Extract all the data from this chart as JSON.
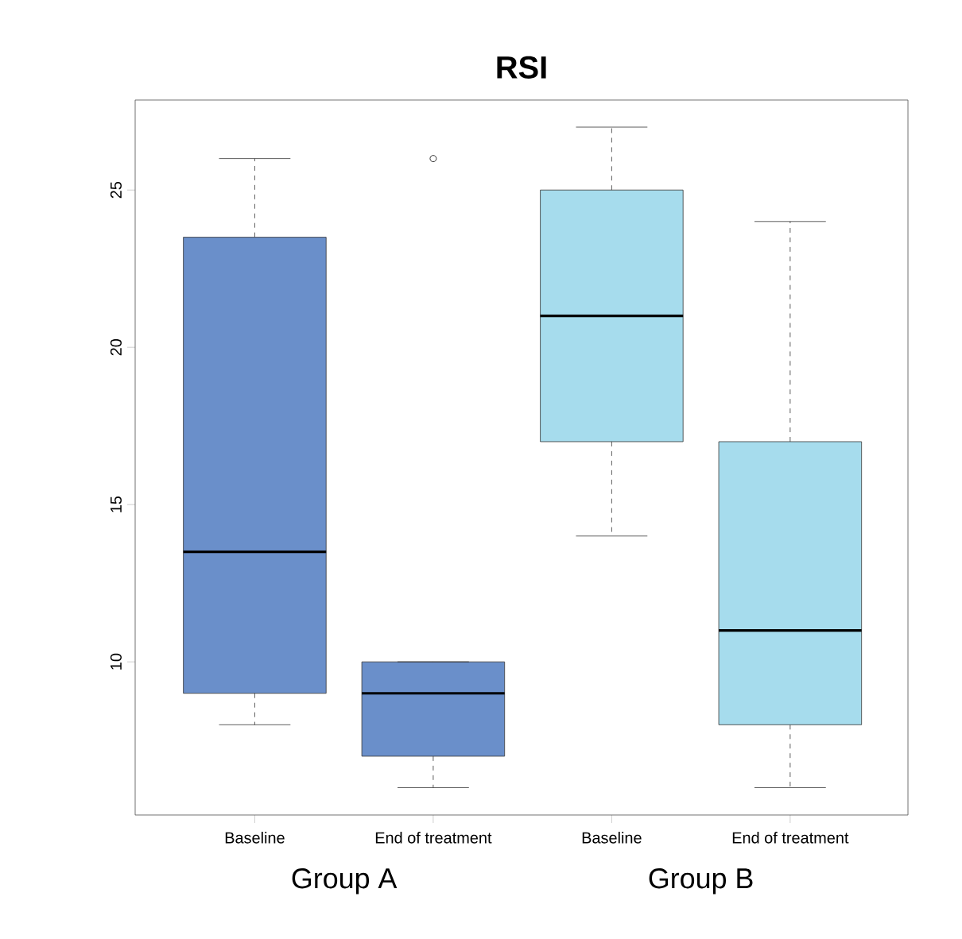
{
  "chart_data": {
    "type": "box",
    "title": "RSI",
    "categories": [
      "Baseline",
      "End of treatment",
      "Baseline",
      "End of treatment"
    ],
    "boxes": [
      {
        "low": 8,
        "q1": 9,
        "median": 13.5,
        "q3": 23.5,
        "high": 26
      },
      {
        "low": 6,
        "q1": 7,
        "median": 9,
        "q3": 10,
        "high": 10,
        "outliers": [
          26
        ]
      },
      {
        "low": 14,
        "q1": 17,
        "median": 21,
        "q3": 25,
        "high": 27
      },
      {
        "low": 6,
        "q1": 8,
        "median": 11,
        "q3": 17,
        "high": 24
      }
    ],
    "colors": [
      "#6a8fca",
      "#6a8fca",
      "#a6dced",
      "#a6dced"
    ],
    "ylim": [
      5.13,
      27.86
    ],
    "yticks": [
      10,
      15,
      20,
      25
    ],
    "annotations": [
      "Group A",
      "Group B"
    ]
  }
}
